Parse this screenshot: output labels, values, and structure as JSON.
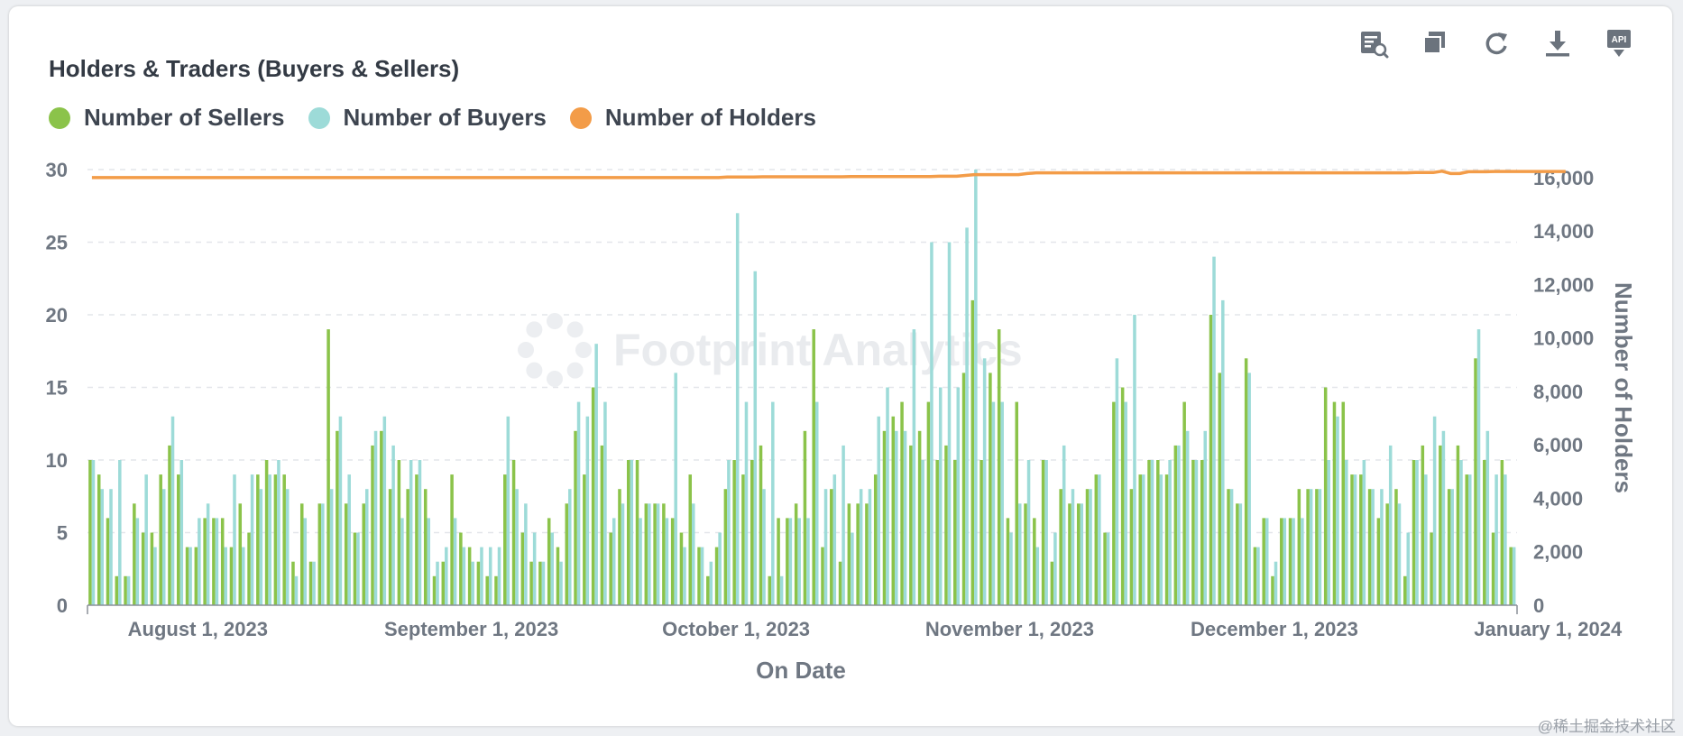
{
  "header": {
    "title": "Holders & Traders (Buyers & Sellers)"
  },
  "toolbar": {
    "icons": [
      "view-sql-icon",
      "duplicate-icon",
      "refresh-icon",
      "download-icon",
      "api-icon"
    ],
    "api_label": "API"
  },
  "colors": {
    "sellers": "#8bc34a",
    "buyers": "#9ddbd8",
    "holders": "#f39c48",
    "grid": "#e3e6ea",
    "axis_text": "#6f7782"
  },
  "legend": [
    {
      "label": "Number of Sellers",
      "color": "#8bc34a"
    },
    {
      "label": "Number of Buyers",
      "color": "#9ddbd8"
    },
    {
      "label": "Number of Holders",
      "color": "#f39c48"
    }
  ],
  "watermark_logo": "Footprint Analytics",
  "footer_watermark": "@稀土掘金技术社区",
  "chart_data": {
    "type": "bar",
    "x_label": "On Date",
    "y_label": "",
    "y2_label": "Number of Holders",
    "x_start": "2023-07-20",
    "x_ticks": [
      {
        "date": "2023-08-01",
        "label": "August 1, 2023"
      },
      {
        "date": "2023-09-01",
        "label": "September 1, 2023"
      },
      {
        "date": "2023-10-01",
        "label": "October 1, 2023"
      },
      {
        "date": "2023-11-01",
        "label": "November 1, 2023"
      },
      {
        "date": "2023-12-01",
        "label": "December 1, 2023"
      },
      {
        "date": "2024-01-01",
        "label": "January 1, 2024"
      }
    ],
    "y_range": [
      0,
      30
    ],
    "y_ticks": [
      0,
      5,
      10,
      15,
      20,
      25,
      30
    ],
    "y2_range": [
      0,
      16300
    ],
    "y2_ticks": [
      0,
      2000,
      4000,
      6000,
      8000,
      10000,
      12000,
      14000,
      16000
    ],
    "y2_tick_labels": [
      "0",
      "2,000",
      "4,000",
      "6,000",
      "8,000",
      "10,000",
      "12,000",
      "14,000",
      "16,000"
    ],
    "grid": true,
    "series": [
      {
        "name": "Number of Sellers",
        "type": "bar",
        "axis": "left",
        "values": [
          10,
          9,
          6,
          2,
          2,
          7,
          5,
          5,
          9,
          11,
          9,
          4,
          4,
          6,
          6,
          6,
          4,
          7,
          5,
          9,
          10,
          9,
          9,
          3,
          7,
          3,
          7,
          19,
          12,
          7,
          5,
          7,
          11,
          12,
          8,
          10,
          8,
          9,
          8,
          2,
          3,
          9,
          5,
          4,
          3,
          2,
          2,
          9,
          10,
          5,
          3,
          3,
          6,
          4,
          7,
          12,
          9,
          15,
          11,
          5,
          8,
          10,
          10,
          7,
          7,
          7,
          6,
          5,
          9,
          4,
          2,
          4,
          8,
          10,
          9,
          10,
          11,
          2,
          6,
          6,
          7,
          12,
          19,
          4,
          8,
          3,
          7,
          7,
          7,
          9,
          12,
          13,
          14,
          11,
          12,
          14,
          10,
          11,
          10,
          16,
          21,
          10,
          16,
          19,
          6,
          14,
          7,
          6,
          10,
          3,
          8,
          7,
          7,
          8,
          9,
          5,
          14,
          15,
          8,
          9,
          10,
          10,
          9,
          11,
          14,
          10,
          10,
          20,
          16,
          8,
          7,
          17,
          4,
          6,
          2,
          6,
          6,
          8,
          8,
          8,
          15,
          14,
          14,
          9,
          9,
          8,
          6,
          7,
          8,
          2,
          10,
          11,
          5,
          11,
          8,
          11,
          9,
          17,
          10,
          5,
          10,
          4
        ],
        "value_note": "daily sellers"
      },
      {
        "name": "Number of Buyers",
        "type": "bar",
        "axis": "left",
        "values": [
          10,
          8,
          8,
          10,
          2,
          6,
          9,
          4,
          8,
          13,
          10,
          4,
          6,
          7,
          6,
          4,
          9,
          4,
          9,
          8,
          9,
          10,
          8,
          2,
          6,
          3,
          7,
          8,
          13,
          9,
          5,
          8,
          12,
          13,
          11,
          6,
          10,
          10,
          6,
          3,
          4,
          6,
          4,
          3,
          4,
          4,
          4,
          13,
          8,
          7,
          5,
          3,
          5,
          3,
          8,
          14,
          13,
          18,
          14,
          6,
          7,
          10,
          6,
          7,
          7,
          6,
          16,
          4,
          7,
          4,
          3,
          5,
          10,
          27,
          14,
          23,
          8,
          14,
          2,
          6,
          6,
          6,
          14,
          8,
          9,
          11,
          5,
          8,
          8,
          13,
          15,
          12,
          12,
          19,
          10,
          25,
          15,
          25,
          15,
          26,
          30,
          17,
          14,
          14,
          5,
          7,
          10,
          4,
          10,
          5,
          11,
          8,
          7,
          8,
          9,
          5,
          17,
          14,
          20,
          9,
          10,
          9,
          10,
          11,
          12,
          10,
          12,
          24,
          21,
          8,
          7,
          16,
          4,
          6,
          3,
          6,
          6,
          6,
          8,
          8,
          10,
          13,
          10,
          9,
          10,
          8,
          8,
          11,
          7,
          5,
          10,
          9,
          13,
          12,
          8,
          10,
          9,
          19,
          12,
          9,
          9,
          4
        ]
      },
      {
        "name": "Number of Holders",
        "type": "line",
        "axis": "right",
        "values": [
          16000,
          16000,
          16000,
          16000,
          16000,
          16000,
          16000,
          16000,
          16000,
          16000,
          16000,
          16000,
          16000,
          16000,
          16000,
          16000,
          16000,
          16000,
          16000,
          16000,
          16000,
          16000,
          16000,
          16000,
          16000,
          16000,
          16000,
          16000,
          16000,
          16000,
          16000,
          16000,
          16000,
          16000,
          16000,
          16000,
          16000,
          16000,
          16000,
          16000,
          16000,
          16000,
          16000,
          16000,
          16000,
          16000,
          16000,
          16000,
          16000,
          16000,
          16000,
          16000,
          16000,
          16000,
          16000,
          16000,
          16000,
          16000,
          16000,
          16000,
          16000,
          16000,
          16000,
          16000,
          16000,
          16000,
          16000,
          16000,
          16000,
          16000,
          16000,
          16000,
          16020,
          16020,
          16020,
          16020,
          16030,
          16030,
          16030,
          16030,
          16030,
          16030,
          16030,
          16030,
          16030,
          16030,
          16040,
          16040,
          16040,
          16040,
          16040,
          16040,
          16040,
          16040,
          16040,
          16040,
          16050,
          16050,
          16050,
          16080,
          16110,
          16110,
          16110,
          16110,
          16110,
          16110,
          16150,
          16180,
          16180,
          16180,
          16180,
          16180,
          16180,
          16180,
          16180,
          16180,
          16180,
          16180,
          16180,
          16180,
          16180,
          16180,
          16180,
          16180,
          16180,
          16180,
          16180,
          16180,
          16180,
          16180,
          16180,
          16180,
          16180,
          16180,
          16180,
          16180,
          16180,
          16180,
          16180,
          16180,
          16180,
          16180,
          16180,
          16180,
          16180,
          16180,
          16180,
          16180,
          16180,
          16180,
          16190,
          16190,
          16190,
          16240,
          16150,
          16150,
          16220,
          16220,
          16220,
          16230,
          16230,
          16230,
          16230,
          16230,
          16230,
          16230,
          16230,
          16230
        ]
      }
    ]
  }
}
